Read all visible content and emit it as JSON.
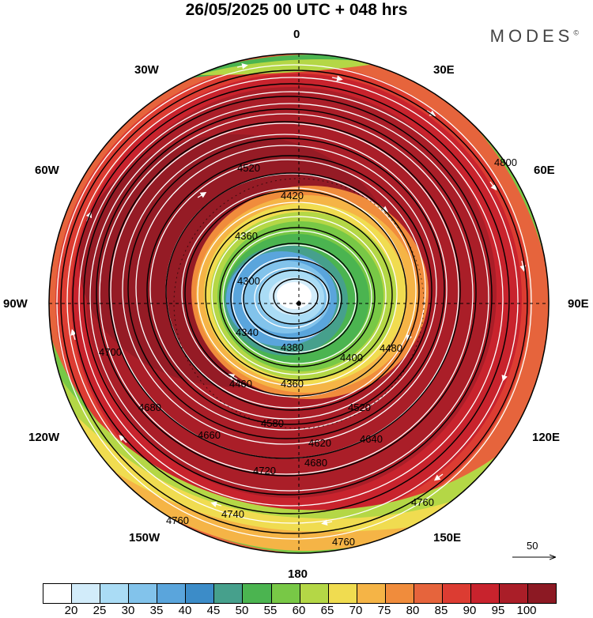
{
  "title": "26/05/2025  00 UTC  + 048 hrs",
  "brand": "MODES",
  "brand_mark": "©",
  "longitude_labels": {
    "lon_0": "0",
    "lon_30e": "30E",
    "lon_60e": "60E",
    "lon_90e": "90E",
    "lon_120e": "120E",
    "lon_150e": "150E",
    "lon_180": "180",
    "lon_150w": "150W",
    "lon_120w": "120W",
    "lon_90w": "90W",
    "lon_60w": "60W",
    "lon_30w": "30W"
  },
  "reference_vector_label": "50",
  "colorbar": {
    "colors": [
      "#ffffff",
      "#d2ecfa",
      "#aadcf5",
      "#82c3eb",
      "#5aa5dc",
      "#3c8cc8",
      "#46a08c",
      "#4bb450",
      "#78c846",
      "#b4d746",
      "#f0dc50",
      "#f5b446",
      "#f08c3c",
      "#e6643c",
      "#dc3c32",
      "#c8232d",
      "#aa1e28",
      "#8c1923"
    ],
    "labels": [
      "20",
      "25",
      "30",
      "35",
      "40",
      "45",
      "50",
      "55",
      "60",
      "65",
      "70",
      "75",
      "80",
      "85",
      "90",
      "95",
      "100"
    ]
  },
  "contour_labels": [
    "4800",
    "4760",
    "4740",
    "4720",
    "4700",
    "4680",
    "4660",
    "4640",
    "4620",
    "4580",
    "4560",
    "4520",
    "4480",
    "4460",
    "4440",
    "4420",
    "4400",
    "4380",
    "4360",
    "4340",
    "4300"
  ]
}
